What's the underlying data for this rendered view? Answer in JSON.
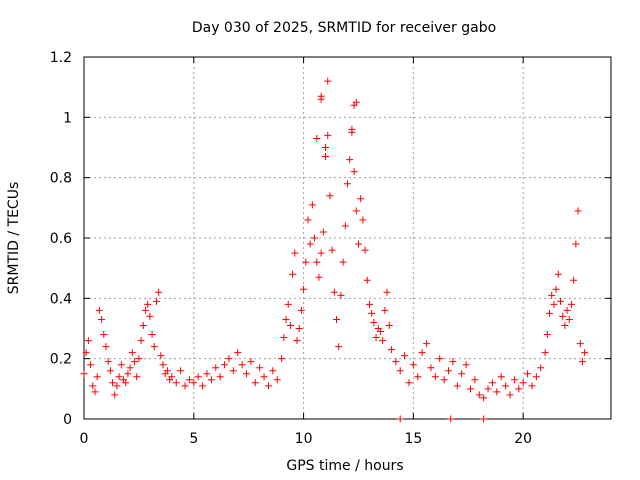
{
  "chart_data": {
    "type": "scatter",
    "title": "Day 030 of 2025, SRMTID for receiver gabo",
    "xlabel": "GPS time / hours",
    "ylabel": "SRMTID / TECUs",
    "xlim": [
      0,
      24
    ],
    "ylim": [
      0,
      1.2
    ],
    "xticks": [
      0,
      5,
      10,
      15,
      20
    ],
    "xtick_labels": [
      "0",
      "5",
      "10",
      "15",
      "20"
    ],
    "yticks": [
      0,
      0.2,
      0.4,
      0.6,
      0.8,
      1.0,
      1.2
    ],
    "ytick_labels": [
      "0",
      "0.2",
      "0.4",
      "0.6",
      "0.8",
      "1",
      "1.2"
    ],
    "grid": true,
    "marker": "+",
    "series": [
      {
        "name": "SRMTID",
        "color": "#ff0000",
        "x": [
          0.0,
          0.1,
          0.2,
          0.3,
          0.4,
          0.5,
          0.6,
          0.7,
          0.8,
          0.9,
          1.0,
          1.1,
          1.2,
          1.3,
          1.4,
          1.5,
          1.6,
          1.7,
          1.8,
          1.9,
          2.0,
          2.1,
          2.2,
          2.3,
          2.4,
          2.5,
          2.6,
          2.7,
          2.8,
          2.9,
          3.0,
          3.1,
          3.2,
          3.3,
          3.4,
          3.5,
          3.6,
          3.7,
          3.8,
          3.9,
          4.0,
          4.2,
          4.4,
          4.6,
          4.8,
          5.0,
          5.2,
          5.4,
          5.6,
          5.8,
          6.0,
          6.2,
          6.4,
          6.6,
          6.8,
          7.0,
          7.2,
          7.4,
          7.6,
          7.8,
          8.0,
          8.2,
          8.4,
          8.6,
          8.8,
          9.0,
          9.1,
          9.2,
          9.3,
          9.4,
          9.5,
          9.6,
          9.7,
          9.8,
          9.9,
          10.0,
          10.1,
          10.2,
          10.3,
          10.4,
          10.5,
          10.6,
          10.7,
          10.8,
          10.9,
          11.0,
          11.1,
          11.2,
          11.3,
          11.4,
          11.5,
          11.6,
          11.7,
          11.8,
          11.9,
          12.0,
          12.1,
          12.2,
          12.3,
          12.4,
          12.5,
          12.6,
          12.7,
          12.8,
          12.9,
          13.0,
          13.1,
          13.2,
          13.3,
          13.4,
          13.5,
          13.6,
          13.7,
          13.8,
          13.9,
          14.0,
          14.2,
          14.4,
          14.6,
          14.8,
          15.0,
          15.2,
          15.4,
          15.6,
          15.8,
          16.0,
          16.2,
          16.4,
          16.6,
          16.8,
          17.0,
          17.2,
          17.4,
          17.6,
          17.8,
          18.0,
          18.2,
          18.4,
          18.6,
          18.8,
          19.0,
          19.2,
          19.4,
          19.6,
          19.8,
          20.0,
          20.2,
          20.4,
          20.6,
          20.8,
          21.0,
          21.1,
          21.2,
          21.3,
          21.4,
          21.5,
          21.6,
          21.7,
          21.8,
          21.9,
          22.0,
          22.1,
          22.2,
          22.3,
          22.4,
          22.5,
          22.6,
          22.7,
          22.8,
          14.4,
          16.7,
          18.2,
          10.8,
          10.8,
          11.1,
          12.3,
          12.4,
          12.2,
          10.6,
          11.0
        ],
        "y": [
          0.15,
          0.22,
          0.26,
          0.18,
          0.11,
          0.09,
          0.14,
          0.36,
          0.33,
          0.28,
          0.24,
          0.19,
          0.16,
          0.12,
          0.08,
          0.11,
          0.14,
          0.18,
          0.13,
          0.12,
          0.15,
          0.17,
          0.22,
          0.19,
          0.14,
          0.2,
          0.26,
          0.31,
          0.36,
          0.38,
          0.34,
          0.28,
          0.24,
          0.39,
          0.42,
          0.21,
          0.18,
          0.15,
          0.16,
          0.13,
          0.14,
          0.12,
          0.16,
          0.11,
          0.13,
          0.12,
          0.14,
          0.11,
          0.15,
          0.13,
          0.17,
          0.14,
          0.18,
          0.2,
          0.16,
          0.22,
          0.18,
          0.15,
          0.19,
          0.12,
          0.17,
          0.14,
          0.11,
          0.16,
          0.13,
          0.2,
          0.27,
          0.33,
          0.38,
          0.31,
          0.48,
          0.55,
          0.26,
          0.3,
          0.36,
          0.43,
          0.52,
          0.66,
          0.58,
          0.71,
          0.6,
          0.52,
          0.47,
          0.55,
          0.62,
          0.9,
          0.94,
          0.74,
          0.56,
          0.42,
          0.33,
          0.24,
          0.41,
          0.52,
          0.64,
          0.78,
          0.86,
          0.95,
          0.82,
          0.69,
          0.58,
          0.73,
          0.66,
          0.56,
          0.46,
          0.38,
          0.35,
          0.32,
          0.27,
          0.3,
          0.29,
          0.26,
          0.36,
          0.42,
          0.31,
          0.23,
          0.19,
          0.16,
          0.21,
          0.12,
          0.18,
          0.14,
          0.22,
          0.25,
          0.17,
          0.14,
          0.2,
          0.13,
          0.16,
          0.19,
          0.11,
          0.15,
          0.18,
          0.1,
          0.13,
          0.08,
          0.07,
          0.1,
          0.12,
          0.09,
          0.14,
          0.11,
          0.08,
          0.13,
          0.1,
          0.12,
          0.15,
          0.11,
          0.14,
          0.17,
          0.22,
          0.28,
          0.35,
          0.41,
          0.38,
          0.43,
          0.48,
          0.39,
          0.34,
          0.31,
          0.36,
          0.33,
          0.38,
          0.46,
          0.58,
          0.69,
          0.25,
          0.19,
          0.22,
          0.0,
          0.0,
          0.0,
          1.06,
          1.07,
          1.12,
          1.04,
          1.05,
          0.96,
          0.93,
          0.87
        ],
        "ylim": [
          0,
          1.2
        ]
      }
    ]
  }
}
